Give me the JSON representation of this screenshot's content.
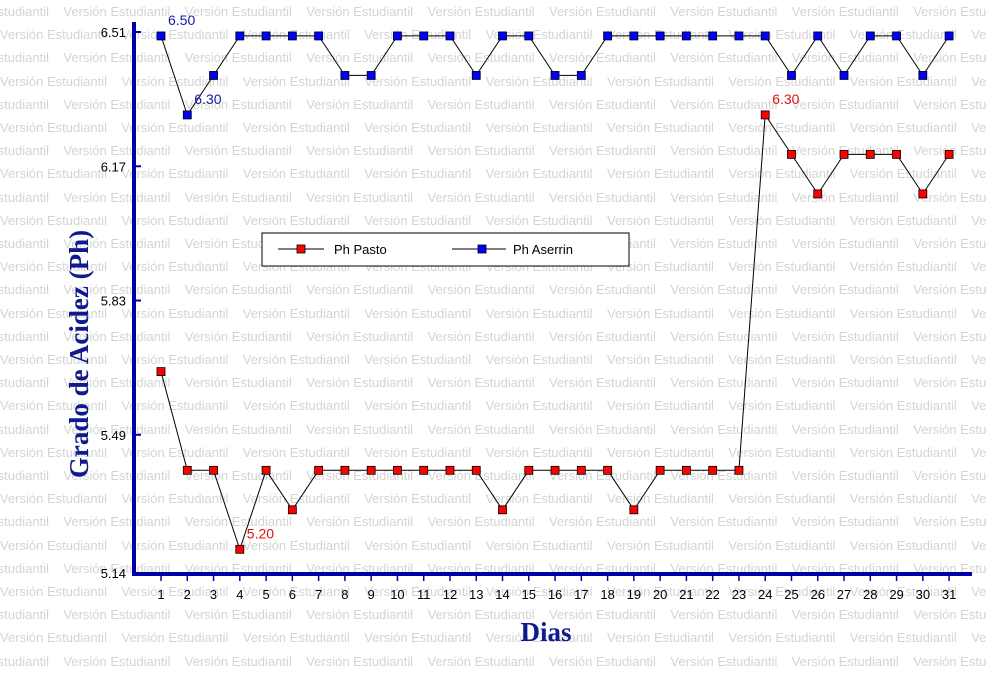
{
  "watermark_text": "Versión Estudiantil",
  "chart_data": {
    "type": "line",
    "xlabel": "Dias",
    "ylabel": "Grado de Acidez (Ph)",
    "x": [
      1,
      2,
      3,
      4,
      5,
      6,
      7,
      8,
      9,
      10,
      11,
      12,
      13,
      14,
      15,
      16,
      17,
      18,
      19,
      20,
      21,
      22,
      23,
      24,
      25,
      26,
      27,
      28,
      29,
      30,
      31
    ],
    "y_ticks": [
      "5.14",
      "5.49",
      "5.83",
      "6.17",
      "6.51"
    ],
    "ylim": [
      5.14,
      6.51
    ],
    "grid": false,
    "legend_position": "center-left",
    "series": [
      {
        "name": "Ph Pasto",
        "color": "#ff0000",
        "values": [
          5.65,
          5.4,
          5.4,
          5.2,
          5.4,
          5.3,
          5.4,
          5.4,
          5.4,
          5.4,
          5.4,
          5.4,
          5.4,
          5.3,
          5.4,
          5.4,
          5.4,
          5.4,
          5.3,
          5.4,
          5.4,
          5.4,
          5.4,
          6.3,
          6.2,
          6.1,
          6.2,
          6.2,
          6.2,
          6.1,
          6.2
        ]
      },
      {
        "name": "Ph Aserrin",
        "color": "#0000ff",
        "values": [
          6.5,
          6.3,
          6.4,
          6.5,
          6.5,
          6.5,
          6.5,
          6.4,
          6.4,
          6.5,
          6.5,
          6.5,
          6.4,
          6.5,
          6.5,
          6.4,
          6.4,
          6.5,
          6.5,
          6.5,
          6.5,
          6.5,
          6.5,
          6.5,
          6.4,
          6.5,
          6.4,
          6.5,
          6.5,
          6.4,
          6.5
        ]
      }
    ],
    "annotations": [
      {
        "series": "Ph Aserrin",
        "x": 1,
        "text": "6.50",
        "color": "#1a1aa6"
      },
      {
        "series": "Ph Aserrin",
        "x": 2,
        "text": "6.30",
        "color": "#1a1aa6"
      },
      {
        "series": "Ph Pasto",
        "x": 4,
        "text": "5.20",
        "color": "#e01010"
      },
      {
        "series": "Ph Pasto",
        "x": 24,
        "text": "6.30",
        "color": "#e01010"
      }
    ]
  }
}
